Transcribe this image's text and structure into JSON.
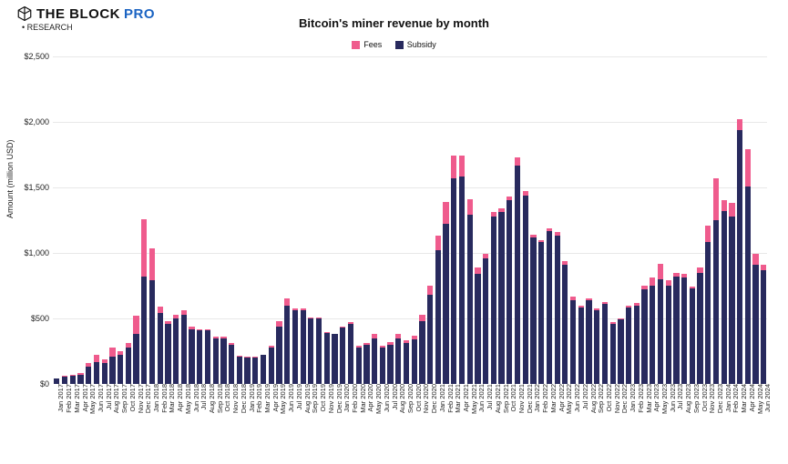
{
  "brand": {
    "name": "THE BLOCK",
    "pro": "PRO",
    "sub": "RESEARCH"
  },
  "chart": {
    "type": "stacked-bar",
    "title": "Bitcoin's miner revenue by month",
    "ylabel": "Amount (million USD)",
    "ylim_max": 2500,
    "ytick_step": 500,
    "yticks": [
      "$0",
      "$500",
      "$1,000",
      "$1,500",
      "$2,000",
      "$2,500"
    ],
    "colors": {
      "subsidy": "#282a5e",
      "fees": "#ef5b8d",
      "background": "#ffffff",
      "grid": "#e8e8e8",
      "text": "#111111"
    },
    "title_fontsize": 13,
    "label_fontsize": 9,
    "tick_fontsize": 9,
    "xtick_fontsize": 7.5,
    "bar_width_ratio": 0.72,
    "legend": [
      {
        "label": "Fees",
        "color": "#ef5b8d"
      },
      {
        "label": "Subsidy",
        "color": "#282a5e"
      }
    ],
    "categories": [
      "Jan 2017",
      "Feb 2017",
      "Mar 2017",
      "Apr 2017",
      "May 2017",
      "Jun 2017",
      "Jul 2017",
      "Aug 2017",
      "Sep 2017",
      "Oct 2017",
      "Nov 2017",
      "Dec 2017",
      "Jan 2018",
      "Feb 2018",
      "Mar 2018",
      "Apr 2018",
      "May 2018",
      "Jun 2018",
      "Jul 2018",
      "Aug 2018",
      "Sep 2018",
      "Oct 2018",
      "Nov 2018",
      "Dec 2018",
      "Jan 2019",
      "Feb 2019",
      "Mar 2019",
      "Apr 2019",
      "May 2019",
      "Jun 2019",
      "Jul 2019",
      "Aug 2019",
      "Sep 2019",
      "Oct 2019",
      "Nov 2019",
      "Dec 2019",
      "Jan 2020",
      "Feb 2020",
      "Mar 2020",
      "Apr 2020",
      "May 2020",
      "Jun 2020",
      "Jul 2020",
      "Aug 2020",
      "Sep 2020",
      "Oct 2020",
      "Nov 2020",
      "Dec 2020",
      "Jan 2021",
      "Feb 2021",
      "Mar 2021",
      "Apr 2021",
      "May 2021",
      "Jun 2021",
      "Jul 2021",
      "Aug 2021",
      "Sep 2021",
      "Oct 2021",
      "Nov 2021",
      "Dec 2021",
      "Jan 2022",
      "Feb 2022",
      "Mar 2022",
      "Apr 2022",
      "May 2022",
      "Jun 2022",
      "Jul 2022",
      "Aug 2022",
      "Sep 2022",
      "Oct 2022",
      "Nov 2022",
      "Dec 2022",
      "Jan 2023",
      "Feb 2023",
      "Mar 2023",
      "Apr 2023",
      "May 2023",
      "Jun 2023",
      "Jul 2023",
      "Aug 2023",
      "Sep 2023",
      "Oct 2023",
      "Nov 2023",
      "Dec 2023",
      "Jan 2024",
      "Feb 2024",
      "Mar 2024",
      "Apr 2024",
      "May 2024",
      "Jun 2024"
    ],
    "subsidy": [
      40,
      55,
      60,
      70,
      130,
      170,
      160,
      210,
      220,
      280,
      380,
      820,
      795,
      540,
      460,
      500,
      530,
      420,
      410,
      410,
      350,
      350,
      300,
      210,
      200,
      200,
      220,
      280,
      440,
      600,
      560,
      560,
      500,
      500,
      390,
      380,
      430,
      460,
      280,
      300,
      350,
      280,
      300,
      350,
      310,
      340,
      480,
      680,
      1020,
      1220,
      1570,
      1580,
      1290,
      840,
      960,
      1280,
      1310,
      1400,
      1670,
      1440,
      1120,
      1080,
      1170,
      1130,
      910,
      640,
      580,
      640,
      560,
      610,
      460,
      490,
      580,
      600,
      720,
      750,
      800,
      750,
      820,
      810,
      730,
      850,
      1080,
      1250,
      1320,
      1280,
      1940,
      1510,
      910,
      870
    ],
    "fees": [
      5,
      5,
      10,
      10,
      30,
      50,
      30,
      70,
      30,
      35,
      140,
      440,
      240,
      50,
      20,
      30,
      30,
      15,
      10,
      10,
      10,
      10,
      10,
      5,
      5,
      5,
      5,
      10,
      40,
      50,
      20,
      15,
      10,
      10,
      5,
      5,
      10,
      10,
      10,
      10,
      30,
      15,
      20,
      30,
      25,
      30,
      50,
      70,
      110,
      170,
      170,
      160,
      120,
      50,
      30,
      30,
      30,
      30,
      60,
      30,
      20,
      20,
      20,
      30,
      30,
      30,
      15,
      15,
      15,
      15,
      10,
      10,
      15,
      20,
      30,
      60,
      120,
      40,
      30,
      30,
      15,
      40,
      130,
      320,
      80,
      100,
      80,
      280,
      80,
      40
    ]
  }
}
